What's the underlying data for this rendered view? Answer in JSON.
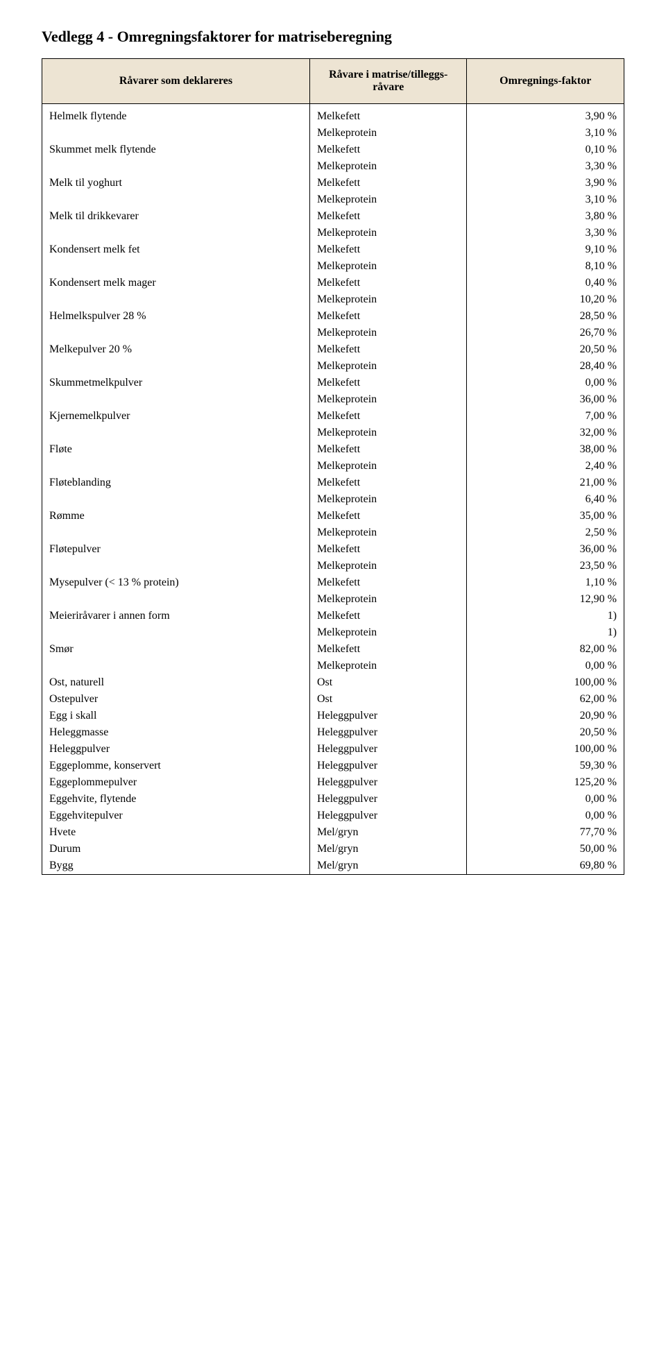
{
  "title": "Vedlegg 4 - Omregningsfaktorer for matriseberegning",
  "table": {
    "background_header": "#ede4d3",
    "border_color": "#000000",
    "font_family": "Times New Roman",
    "columns": [
      {
        "label": "Råvarer som deklareres",
        "align": "center"
      },
      {
        "label": "Råvare i matrise/tilleggs-råvare",
        "align": "center"
      },
      {
        "label": "Omregnings-faktor",
        "align": "center"
      }
    ],
    "rows": [
      {
        "c1": "Helmelk flytende",
        "c2": "Melkefett",
        "c3": "3,90 %"
      },
      {
        "c1": "",
        "c2": "Melkeprotein",
        "c3": "3,10 %"
      },
      {
        "c1": "Skummet melk flytende",
        "c2": "Melkefett",
        "c3": "0,10 %"
      },
      {
        "c1": "",
        "c2": "Melkeprotein",
        "c3": "3,30 %"
      },
      {
        "c1": "Melk til yoghurt",
        "c2": "Melkefett",
        "c3": "3,90 %"
      },
      {
        "c1": "",
        "c2": "Melkeprotein",
        "c3": "3,10 %"
      },
      {
        "c1": "Melk til drikkevarer",
        "c2": "Melkefett",
        "c3": "3,80 %"
      },
      {
        "c1": "",
        "c2": "Melkeprotein",
        "c3": "3,30 %"
      },
      {
        "c1": "Kondensert melk fet",
        "c2": "Melkefett",
        "c3": "9,10 %"
      },
      {
        "c1": "",
        "c2": "Melkeprotein",
        "c3": "8,10 %"
      },
      {
        "c1": "Kondensert melk mager",
        "c2": "Melkefett",
        "c3": "0,40 %"
      },
      {
        "c1": "",
        "c2": "Melkeprotein",
        "c3": "10,20 %"
      },
      {
        "c1": "Helmelkspulver 28 %",
        "c2": "Melkefett",
        "c3": "28,50 %"
      },
      {
        "c1": "",
        "c2": "Melkeprotein",
        "c3": "26,70 %"
      },
      {
        "c1": "Melkepulver 20 %",
        "c2": "Melkefett",
        "c3": "20,50 %"
      },
      {
        "c1": "",
        "c2": "Melkeprotein",
        "c3": "28,40 %"
      },
      {
        "c1": "Skummetmelkpulver",
        "c2": "Melkefett",
        "c3": "0,00 %"
      },
      {
        "c1": "",
        "c2": "Melkeprotein",
        "c3": "36,00 %"
      },
      {
        "c1": "Kjernemelkpulver",
        "c2": "Melkefett",
        "c3": "7,00 %"
      },
      {
        "c1": "",
        "c2": "Melkeprotein",
        "c3": "32,00 %"
      },
      {
        "c1": "Fløte",
        "c2": "Melkefett",
        "c3": "38,00 %"
      },
      {
        "c1": "",
        "c2": "Melkeprotein",
        "c3": "2,40 %"
      },
      {
        "c1": "Fløteblanding",
        "c2": "Melkefett",
        "c3": "21,00 %"
      },
      {
        "c1": "",
        "c2": "Melkeprotein",
        "c3": "6,40 %"
      },
      {
        "c1": "Rømme",
        "c2": "Melkefett",
        "c3": "35,00 %"
      },
      {
        "c1": "",
        "c2": "Melkeprotein",
        "c3": "2,50 %"
      },
      {
        "c1": "Fløtepulver",
        "c2": "Melkefett",
        "c3": "36,00 %"
      },
      {
        "c1": "",
        "c2": "Melkeprotein",
        "c3": "23,50 %"
      },
      {
        "c1": "Mysepulver (< 13 % protein)",
        "c2": "Melkefett",
        "c3": "1,10 %"
      },
      {
        "c1": "",
        "c2": "Melkeprotein",
        "c3": "12,90 %"
      },
      {
        "c1": "Meieriråvarer i annen form",
        "c2": "Melkefett",
        "c3": "1)"
      },
      {
        "c1": "",
        "c2": "Melkeprotein",
        "c3": "1)"
      },
      {
        "c1": "Smør",
        "c2": "Melkefett",
        "c3": "82,00 %"
      },
      {
        "c1": "",
        "c2": "Melkeprotein",
        "c3": "0,00 %"
      },
      {
        "c1": "Ost, naturell",
        "c2": "Ost",
        "c3": "100,00 %"
      },
      {
        "c1": "Ostepulver",
        "c2": "Ost",
        "c3": "62,00 %"
      },
      {
        "c1": "Egg i skall",
        "c2": "Heleggpulver",
        "c3": "20,90 %"
      },
      {
        "c1": "Heleggmasse",
        "c2": "Heleggpulver",
        "c3": "20,50 %"
      },
      {
        "c1": "Heleggpulver",
        "c2": "Heleggpulver",
        "c3": "100,00 %"
      },
      {
        "c1": "Eggeplomme, konservert",
        "c2": "Heleggpulver",
        "c3": "59,30 %"
      },
      {
        "c1": "Eggeplommepulver",
        "c2": "Heleggpulver",
        "c3": "125,20 %"
      },
      {
        "c1": "Eggehvite, flytende",
        "c2": "Heleggpulver",
        "c3": "0,00 %"
      },
      {
        "c1": "Eggehvitepulver",
        "c2": "Heleggpulver",
        "c3": "0,00 %"
      },
      {
        "c1": "Hvete",
        "c2": "Mel/gryn",
        "c3": "77,70 %"
      },
      {
        "c1": "Durum",
        "c2": "Mel/gryn",
        "c3": "50,00 %"
      },
      {
        "c1": "Bygg",
        "c2": "Mel/gryn",
        "c3": "69,80 %"
      }
    ]
  }
}
